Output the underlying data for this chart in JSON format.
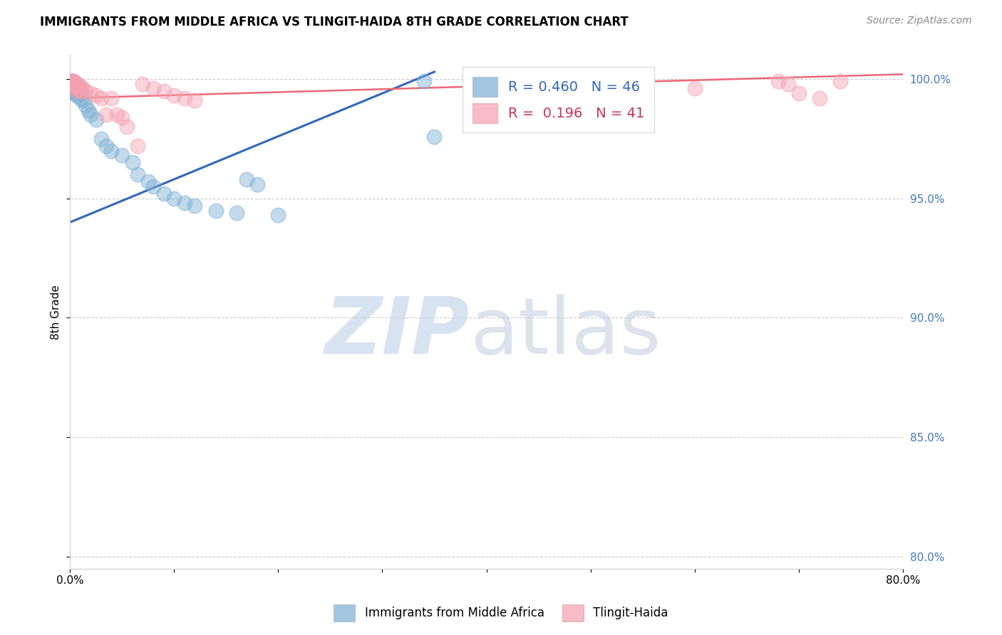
{
  "title": "IMMIGRANTS FROM MIDDLE AFRICA VS TLINGIT-HAIDA 8TH GRADE CORRELATION CHART",
  "source": "Source: ZipAtlas.com",
  "ylabel": "8th Grade",
  "legend_blue_r": "R = 0.460",
  "legend_blue_n": "N = 46",
  "legend_pink_r": "R =  0.196",
  "legend_pink_n": "N = 41",
  "blue_color": "#7BAFD4",
  "pink_color": "#F4A0B0",
  "blue_line_color": "#3366BB",
  "pink_line_color": "#EE6677",
  "blue_line_x0": 0.0,
  "blue_line_y0": 0.94,
  "blue_line_x1": 0.35,
  "blue_line_y1": 1.003,
  "pink_line_x0": 0.0,
  "pink_line_y0": 0.992,
  "pink_line_x1": 0.8,
  "pink_line_y1": 1.002,
  "blue_dots": [
    [
      0.001,
      0.999
    ],
    [
      0.001,
      0.998
    ],
    [
      0.001,
      0.997
    ],
    [
      0.002,
      0.999
    ],
    [
      0.002,
      0.998
    ],
    [
      0.002,
      0.997
    ],
    [
      0.002,
      0.996
    ],
    [
      0.003,
      0.999
    ],
    [
      0.003,
      0.997
    ],
    [
      0.003,
      0.995
    ],
    [
      0.004,
      0.998
    ],
    [
      0.004,
      0.996
    ],
    [
      0.004,
      0.994
    ],
    [
      0.005,
      0.997
    ],
    [
      0.005,
      0.995
    ],
    [
      0.006,
      0.996
    ],
    [
      0.006,
      0.993
    ],
    [
      0.007,
      0.998
    ],
    [
      0.007,
      0.996
    ],
    [
      0.008,
      0.997
    ],
    [
      0.01,
      0.994
    ],
    [
      0.01,
      0.992
    ],
    [
      0.012,
      0.991
    ],
    [
      0.015,
      0.989
    ],
    [
      0.018,
      0.987
    ],
    [
      0.02,
      0.985
    ],
    [
      0.025,
      0.983
    ],
    [
      0.03,
      0.975
    ],
    [
      0.035,
      0.972
    ],
    [
      0.04,
      0.97
    ],
    [
      0.05,
      0.968
    ],
    [
      0.06,
      0.965
    ],
    [
      0.065,
      0.96
    ],
    [
      0.075,
      0.957
    ],
    [
      0.08,
      0.955
    ],
    [
      0.09,
      0.952
    ],
    [
      0.1,
      0.95
    ],
    [
      0.11,
      0.948
    ],
    [
      0.12,
      0.947
    ],
    [
      0.14,
      0.945
    ],
    [
      0.16,
      0.944
    ],
    [
      0.17,
      0.958
    ],
    [
      0.18,
      0.956
    ],
    [
      0.2,
      0.943
    ],
    [
      0.34,
      0.999
    ],
    [
      0.35,
      0.976
    ]
  ],
  "pink_dots": [
    [
      0.001,
      0.999
    ],
    [
      0.002,
      0.999
    ],
    [
      0.002,
      0.998
    ],
    [
      0.003,
      0.999
    ],
    [
      0.003,
      0.998
    ],
    [
      0.004,
      0.999
    ],
    [
      0.004,
      0.997
    ],
    [
      0.005,
      0.998
    ],
    [
      0.006,
      0.997
    ],
    [
      0.006,
      0.996
    ],
    [
      0.007,
      0.998
    ],
    [
      0.007,
      0.995
    ],
    [
      0.008,
      0.996
    ],
    [
      0.01,
      0.997
    ],
    [
      0.01,
      0.995
    ],
    [
      0.012,
      0.996
    ],
    [
      0.015,
      0.995
    ],
    [
      0.02,
      0.994
    ],
    [
      0.025,
      0.993
    ],
    [
      0.03,
      0.992
    ],
    [
      0.035,
      0.985
    ],
    [
      0.04,
      0.992
    ],
    [
      0.045,
      0.985
    ],
    [
      0.05,
      0.984
    ],
    [
      0.055,
      0.98
    ],
    [
      0.065,
      0.972
    ],
    [
      0.07,
      0.998
    ],
    [
      0.08,
      0.996
    ],
    [
      0.09,
      0.995
    ],
    [
      0.1,
      0.993
    ],
    [
      0.11,
      0.992
    ],
    [
      0.12,
      0.991
    ],
    [
      0.4,
      0.99
    ],
    [
      0.45,
      0.997
    ],
    [
      0.55,
      0.998
    ],
    [
      0.6,
      0.996
    ],
    [
      0.68,
      0.999
    ],
    [
      0.69,
      0.998
    ],
    [
      0.7,
      0.994
    ],
    [
      0.72,
      0.992
    ],
    [
      0.74,
      0.999
    ]
  ],
  "xlim": [
    0.0,
    0.8
  ],
  "ylim": [
    0.795,
    1.01
  ],
  "xtick_values": [
    0.0,
    0.1,
    0.2,
    0.3,
    0.4,
    0.5,
    0.6,
    0.7,
    0.8
  ],
  "xtick_labels": [
    "0.0%",
    "",
    "",
    "",
    "",
    "",
    "",
    "",
    "80.0%"
  ],
  "ytick_values": [
    0.8,
    0.85,
    0.9,
    0.95,
    1.0
  ],
  "ytick_labels": [
    "80.0%",
    "85.0%",
    "90.0%",
    "95.0%",
    "100.0%"
  ]
}
